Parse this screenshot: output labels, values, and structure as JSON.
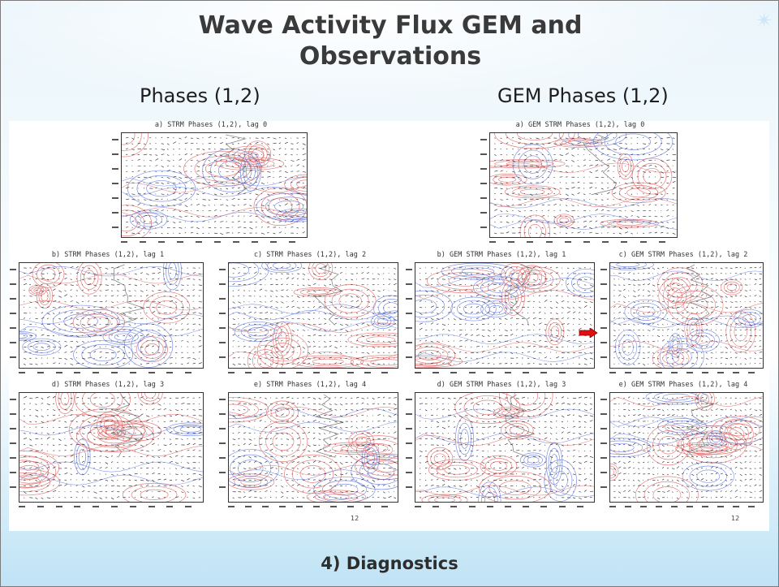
{
  "slide": {
    "title": "Wave Activity Flux GEM and Observations",
    "subtitle_left": "Phases (1,2)",
    "subtitle_right": "GEM Phases (1,2)",
    "footer": "4) Diagnostics",
    "page_marks": [
      "12",
      "12"
    ]
  },
  "panels": [
    {
      "title": "a) STRM Phases (1,2), lag 0"
    },
    {
      "title": "b) STRM Phases (1,2), lag 1"
    },
    {
      "title": "c) STRM Phases (1,2), lag 2"
    },
    {
      "title": "d) STRM Phases (1,2), lag 3"
    },
    {
      "title": "e) STRM Phases (1,2), lag 4"
    },
    {
      "title": "a) GEM STRM Phases (1,2), lag 0"
    },
    {
      "title": "b) GEM STRM Phases (1,2), lag 1"
    },
    {
      "title": "c) GEM STRM Phases (1,2), lag 2"
    },
    {
      "title": "d) GEM STRM Phases (1,2), lag 3"
    },
    {
      "title": "e) GEM STRM Phases (1,2), lag 4"
    }
  ],
  "colors": {
    "positive_contour": "#e06a6a",
    "negative_contour": "#6a7fe0",
    "vectors": "#222222",
    "coastline": "#888888",
    "arrow": "#e01010"
  }
}
